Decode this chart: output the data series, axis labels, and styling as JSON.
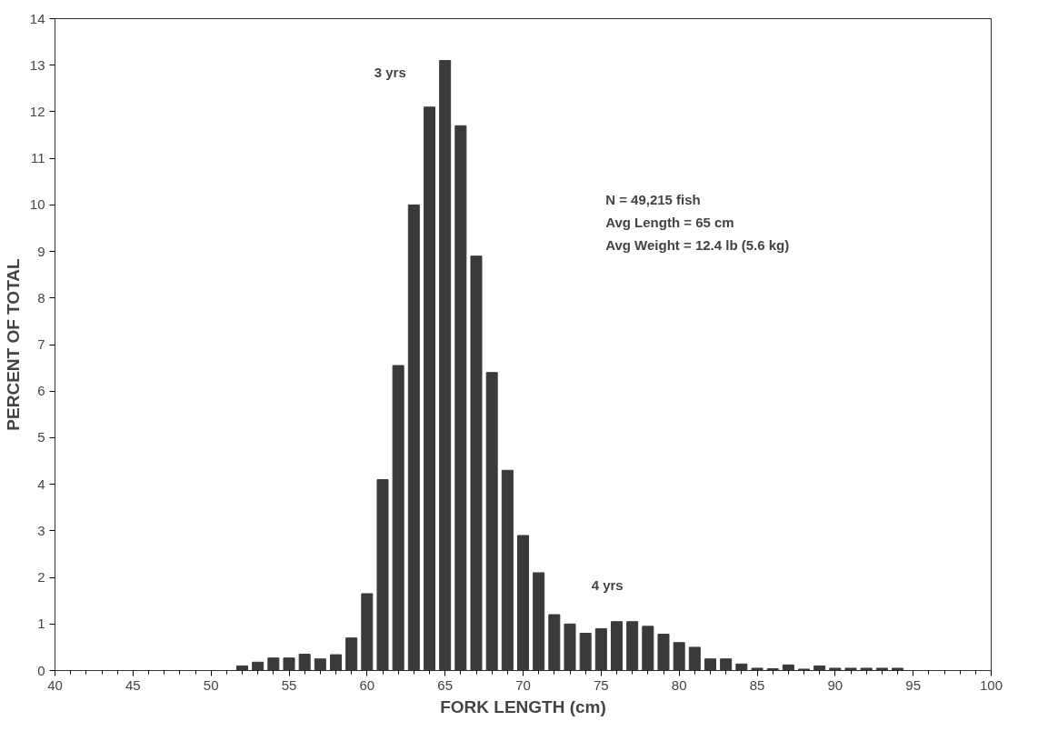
{
  "chart_data": {
    "type": "bar",
    "xlabel": "FORK LENGTH (cm)",
    "ylabel": "PERCENT OF TOTAL",
    "x": [
      52,
      53,
      54,
      55,
      56,
      57,
      58,
      59,
      60,
      61,
      62,
      63,
      64,
      65,
      66,
      67,
      68,
      69,
      70,
      71,
      72,
      73,
      74,
      75,
      76,
      77,
      78,
      79,
      80,
      81,
      82,
      83,
      84,
      85,
      86,
      87,
      88,
      89,
      90,
      91,
      92,
      93,
      94
    ],
    "values": [
      0.1,
      0.18,
      0.27,
      0.27,
      0.35,
      0.25,
      0.34,
      0.7,
      1.65,
      4.1,
      6.55,
      10.0,
      12.1,
      13.1,
      11.7,
      8.9,
      6.4,
      4.3,
      2.9,
      2.1,
      1.2,
      1.0,
      0.8,
      0.9,
      1.05,
      1.05,
      0.95,
      0.78,
      0.6,
      0.5,
      0.25,
      0.25,
      0.14,
      0.05,
      0.04,
      0.12,
      0.03,
      0.1,
      0.05,
      0.05,
      0.05,
      0.05,
      0.05
    ],
    "color": "#3a3a3c",
    "xlim": [
      40,
      100
    ],
    "xticks": [
      40,
      45,
      50,
      55,
      60,
      65,
      70,
      75,
      80,
      85,
      90,
      95,
      100
    ],
    "ylim": [
      0,
      14
    ],
    "yticks": [
      0,
      1,
      2,
      3,
      4,
      5,
      6,
      7,
      8,
      9,
      10,
      11,
      12,
      13,
      14
    ],
    "grid": false,
    "annotations": [
      "3 yrs",
      "4 yrs",
      "N = 49,215 fish",
      "Avg Length = 65 cm",
      "Avg Weight = 12.4 lb (5.6 kg)"
    ]
  }
}
